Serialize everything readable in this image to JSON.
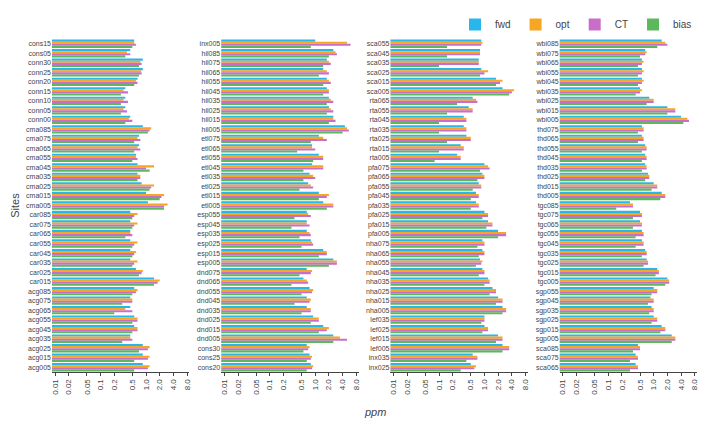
{
  "chart_data": [
    {
      "type": "bar",
      "orientation": "horizontal",
      "log": "x",
      "grid": false,
      "legend": "upper right",
      "ylabel": "Sites",
      "xlabel": "ppm",
      "xlim": [
        0.0085,
        9
      ],
      "xticks": [
        0.01,
        0.02,
        0.05,
        0.1,
        0.2,
        0.5,
        {
          "value": 1,
          "label": "1.0"
        },
        {
          "value": 2,
          "label": "2.0"
        },
        {
          "value": 4,
          "label": "4.0"
        },
        {
          "value": 8,
          "label": "8.0"
        }
      ],
      "categories": [
        "cons15",
        "cons05",
        "conn30",
        "conn25",
        "conn20",
        "conn15",
        "conn10",
        "conn05",
        "conn00",
        "cma085",
        "cma075",
        "cma065",
        "cma055",
        "cma045",
        "cma035",
        "cma025",
        "cma015",
        "cma005",
        "car085",
        "car075",
        "car065",
        "car055",
        "car045",
        "car035",
        "car025",
        "car015",
        "acg085",
        "acg075",
        "acg065",
        "acg055",
        "acg045",
        "acg035",
        "acg025",
        "acg015",
        "acg005"
      ],
      "series": [
        {
          "name": "fwd",
          "color": "#29b6e8",
          "values": [
            0.55,
            0.45,
            0.85,
            0.85,
            0.65,
            0.35,
            0.35,
            0.35,
            0.45,
            0.85,
            0.7,
            0.7,
            0.6,
            0.65,
            0.65,
            0.8,
            1.0,
            1.1,
            0.45,
            0.45,
            0.45,
            0.45,
            0.45,
            0.45,
            0.6,
            1.5,
            0.55,
            0.45,
            0.45,
            0.55,
            0.55,
            0.45,
            0.85,
            0.85,
            0.85
          ]
        },
        {
          "name": "opt",
          "color": "#f5a623",
          "values": [
            0.55,
            0.38,
            0.75,
            0.78,
            0.6,
            0.32,
            0.32,
            0.32,
            0.42,
            1.3,
            0.65,
            0.65,
            0.6,
            1.5,
            0.75,
            1.5,
            2.5,
            3.0,
            0.65,
            0.65,
            0.45,
            0.65,
            0.6,
            0.65,
            0.85,
            2.0,
            0.65,
            0.5,
            0.35,
            0.65,
            0.65,
            0.45,
            1.2,
            1.2,
            1.2
          ]
        },
        {
          "name": "CT",
          "color": "#c86ec8",
          "values": [
            0.6,
            0.45,
            0.8,
            0.8,
            0.65,
            0.4,
            0.4,
            0.38,
            0.5,
            1.2,
            0.75,
            0.75,
            0.65,
            1.0,
            0.75,
            1.3,
            2.2,
            2.5,
            0.55,
            0.55,
            0.5,
            0.55,
            0.55,
            0.55,
            0.8,
            1.8,
            0.6,
            0.5,
            0.5,
            0.65,
            0.65,
            0.5,
            1.1,
            1.1,
            1.1
          ]
        },
        {
          "name": "bias",
          "color": "#5cb85c",
          "values": [
            0.5,
            0.35,
            0.7,
            0.7,
            0.55,
            0.28,
            0.28,
            0.28,
            0.35,
            1.1,
            0.55,
            0.55,
            0.5,
            1.2,
            0.65,
            1.2,
            2.0,
            2.5,
            0.5,
            0.5,
            0.35,
            0.5,
            0.5,
            0.5,
            0.7,
            1.5,
            0.5,
            0.3,
            0.2,
            0.5,
            0.5,
            0.3,
            0.7,
            0.55,
            0.55
          ]
        }
      ]
    },
    {
      "type": "bar",
      "orientation": "horizontal",
      "log": "x",
      "grid": false,
      "xlim": [
        0.0085,
        9
      ],
      "xticks": [
        0.01,
        0.02,
        0.05,
        0.1,
        0.2,
        0.5,
        {
          "value": 1,
          "label": "1.0"
        },
        {
          "value": 2,
          "label": "2.0"
        },
        {
          "value": 4,
          "label": "4.0"
        },
        {
          "value": 8,
          "label": "8.0"
        }
      ],
      "categories": [
        "inx005",
        "hil085",
        "hil075",
        "hil065",
        "hil055",
        "hil045",
        "hil035",
        "hil025",
        "hil015",
        "hil005",
        "etl075",
        "etl065",
        "etl055",
        "etl045",
        "etl035",
        "etl025",
        "etl015",
        "etl005",
        "esp055",
        "esp045",
        "esp035",
        "esp025",
        "esp015",
        "esp005",
        "dnd075",
        "dnd065",
        "dnd055",
        "dnd045",
        "dnd035",
        "dnd025",
        "dnd015",
        "dnd005",
        "cons30",
        "cons25",
        "cons20"
      ],
      "series": [
        {
          "name": "fwd",
          "color": "#29b6e8",
          "values": [
            1.0,
            2.5,
            1.8,
            1.5,
            1.8,
            1.8,
            2.0,
            2.0,
            2.5,
            4.5,
            1.2,
            0.85,
            1.2,
            0.85,
            0.75,
            0.7,
            1.2,
            1.5,
            0.65,
            0.65,
            0.65,
            0.8,
            1.5,
            2.5,
            0.65,
            0.55,
            0.75,
            0.65,
            0.65,
            0.9,
            1.5,
            2.5,
            0.65,
            0.75,
            0.8
          ]
        },
        {
          "name": "opt",
          "color": "#f5a623",
          "values": [
            5.0,
            2.8,
            2.0,
            1.8,
            2.0,
            2.0,
            2.2,
            2.2,
            2.5,
            5.0,
            1.5,
            0.85,
            1.5,
            1.5,
            0.9,
            0.8,
            2.0,
            2.5,
            0.7,
            0.65,
            0.75,
            0.85,
            1.8,
            3.0,
            0.85,
            0.65,
            0.9,
            0.8,
            0.8,
            1.2,
            2.0,
            3.5,
            0.75,
            0.85,
            0.9
          ]
        },
        {
          "name": "CT",
          "color": "#c86ec8",
          "values": [
            6.0,
            3.0,
            2.2,
            2.0,
            2.2,
            2.0,
            2.5,
            2.5,
            2.8,
            5.5,
            1.8,
            1.0,
            1.5,
            1.5,
            1.0,
            0.9,
            1.8,
            2.5,
            0.8,
            0.75,
            0.8,
            0.9,
            1.8,
            3.0,
            0.8,
            0.7,
            0.85,
            0.75,
            0.8,
            1.2,
            1.8,
            5.0,
            0.7,
            0.8,
            0.85
          ]
        },
        {
          "name": "bias",
          "color": "#5cb85c",
          "values": [
            0.8,
            2.0,
            1.5,
            1.2,
            1.5,
            1.5,
            1.8,
            1.8,
            2.0,
            4.0,
            0.8,
            0.4,
            0.9,
            0.55,
            0.55,
            0.45,
            1.2,
            1.8,
            0.35,
            0.3,
            0.45,
            0.5,
            1.2,
            2.0,
            0.45,
            0.3,
            0.5,
            0.35,
            0.5,
            0.8,
            1.2,
            2.5,
            0.55,
            0.65,
            0.65
          ]
        }
      ]
    },
    {
      "type": "bar",
      "orientation": "horizontal",
      "log": "x",
      "grid": false,
      "xlim": [
        0.0085,
        9
      ],
      "xticks": [
        0.01,
        0.02,
        0.05,
        0.1,
        0.2,
        0.5,
        {
          "value": 1,
          "label": "1.0"
        },
        {
          "value": 2,
          "label": "2.0"
        },
        {
          "value": 4,
          "label": "4.0"
        },
        {
          "value": 8,
          "label": "8.0"
        }
      ],
      "categories": [
        "sca055",
        "sca045",
        "sca035",
        "sca025",
        "sca015",
        "sca005",
        "rta065",
        "rta055",
        "rta045",
        "rta035",
        "rta025",
        "rta015",
        "rta005",
        "pfa075",
        "pfa065",
        "pfa055",
        "pfa045",
        "pfa035",
        "pfa025",
        "pfa015",
        "pfa005",
        "nha075",
        "nha065",
        "nha055",
        "nha045",
        "nha035",
        "nha025",
        "nha015",
        "nha005",
        "lef035",
        "lef025",
        "lef015",
        "lef005",
        "inx035",
        "inx025"
      ],
      "series": [
        {
          "name": "fwd",
          "color": "#29b6e8",
          "values": [
            0.85,
            0.8,
            0.75,
            0.85,
            1.8,
            2.5,
            0.55,
            0.45,
            0.35,
            0.35,
            0.4,
            0.3,
            0.25,
            1.0,
            0.9,
            0.75,
            0.65,
            0.65,
            1.0,
            1.2,
            2.0,
            0.9,
            0.9,
            0.8,
            0.9,
            1.2,
            1.5,
            2.0,
            2.5,
            1.0,
            1.0,
            2.0,
            2.5,
            0.55,
            0.5
          ]
        },
        {
          "name": "opt",
          "color": "#f5a623",
          "values": [
            0.9,
            0.8,
            0.75,
            1.2,
            2.5,
            4.5,
            0.65,
            0.55,
            0.4,
            0.4,
            0.5,
            0.35,
            0.3,
            1.2,
            1.0,
            0.85,
            0.75,
            0.75,
            1.2,
            1.5,
            3.0,
            1.0,
            1.0,
            0.9,
            1.0,
            1.3,
            1.8,
            2.5,
            3.0,
            1.0,
            1.2,
            2.5,
            3.5,
            0.7,
            0.65
          ]
        },
        {
          "name": "CT",
          "color": "#c86ec8",
          "values": [
            0.85,
            0.8,
            0.75,
            1.0,
            2.2,
            4.0,
            0.7,
            0.55,
            0.4,
            0.4,
            0.5,
            0.35,
            0.3,
            1.3,
            1.0,
            0.85,
            0.75,
            0.75,
            1.2,
            1.5,
            3.0,
            1.0,
            1.0,
            0.85,
            1.0,
            1.3,
            1.8,
            2.5,
            3.0,
            1.0,
            1.2,
            2.5,
            3.5,
            0.7,
            0.6
          ]
        },
        {
          "name": "bias",
          "color": "#5cb85c",
          "values": [
            0.15,
            0.15,
            0.1,
            0.8,
            1.8,
            3.5,
            0.25,
            0.15,
            0.1,
            0.1,
            0.15,
            0.1,
            0.08,
            0.8,
            0.7,
            0.55,
            0.5,
            0.5,
            0.9,
            1.1,
            2.0,
            0.7,
            0.75,
            0.65,
            0.75,
            1.0,
            1.3,
            1.8,
            2.5,
            0.85,
            0.9,
            1.8,
            2.5,
            0.4,
            0.3
          ]
        }
      ]
    },
    {
      "type": "bar",
      "orientation": "horizontal",
      "log": "x",
      "grid": false,
      "xlim": [
        0.0085,
        9
      ],
      "xticks": [
        0.01,
        0.02,
        0.05,
        0.1,
        0.2,
        0.5,
        {
          "value": 1,
          "label": "1.0"
        },
        {
          "value": 2,
          "label": "2.0"
        },
        {
          "value": 4,
          "label": "4.0"
        },
        {
          "value": 8,
          "label": "8.0"
        }
      ],
      "categories": [
        "wbi085",
        "wbi075",
        "wbi065",
        "wbi055",
        "wbi045",
        "wbi035",
        "wbi025",
        "wbi015",
        "wbi005",
        "thd075",
        "thd065",
        "thd055",
        "thd045",
        "thd035",
        "thd025",
        "thd015",
        "thd005",
        "tgc085",
        "tgc075",
        "tgc065",
        "tgc055",
        "tgc045",
        "tgc035",
        "tgc025",
        "tgc015",
        "tgc005",
        "sgp055",
        "sgp045",
        "sgp035",
        "sgp025",
        "sgp015",
        "sgp005",
        "sca085",
        "sca075",
        "sca065"
      ],
      "series": [
        {
          "name": "fwd",
          "color": "#29b6e8",
          "values": [
            1.5,
            0.65,
            0.55,
            0.55,
            0.55,
            0.5,
            0.8,
            2.0,
            4.0,
            0.55,
            0.55,
            0.65,
            0.65,
            0.65,
            0.75,
            1.0,
            1.5,
            0.3,
            0.5,
            0.5,
            0.55,
            0.55,
            0.65,
            0.7,
            1.2,
            2.0,
            1.0,
            0.85,
            0.9,
            1.0,
            1.5,
            2.5,
            0.45,
            0.4,
            0.4
          ]
        },
        {
          "name": "opt",
          "color": "#f5a623",
          "values": [
            1.8,
            0.7,
            0.6,
            0.6,
            0.6,
            0.55,
            1.0,
            3.0,
            5.5,
            0.6,
            0.6,
            0.7,
            0.7,
            0.7,
            0.8,
            1.2,
            1.8,
            0.35,
            0.55,
            0.55,
            0.6,
            0.6,
            0.7,
            0.75,
            1.3,
            2.2,
            1.2,
            1.0,
            1.0,
            1.2,
            1.8,
            3.0,
            0.5,
            0.45,
            0.45
          ]
        },
        {
          "name": "CT",
          "color": "#c86ec8",
          "values": [
            2.0,
            0.65,
            0.55,
            0.55,
            0.55,
            0.5,
            1.0,
            3.0,
            6.0,
            0.6,
            0.6,
            0.7,
            0.7,
            0.7,
            0.8,
            1.2,
            1.8,
            0.35,
            0.55,
            0.55,
            0.6,
            0.6,
            0.7,
            0.75,
            1.3,
            2.2,
            1.2,
            1.0,
            1.0,
            1.2,
            1.8,
            3.0,
            0.5,
            0.45,
            0.45
          ]
        },
        {
          "name": "bias",
          "color": "#5cb85c",
          "values": [
            1.2,
            0.5,
            0.45,
            0.45,
            0.45,
            0.4,
            0.7,
            2.0,
            4.5,
            0.45,
            0.45,
            0.55,
            0.55,
            0.55,
            0.65,
            0.9,
            1.4,
            0.15,
            0.35,
            0.35,
            0.4,
            0.4,
            0.55,
            0.6,
            1.1,
            1.8,
            0.9,
            0.75,
            0.8,
            0.9,
            1.4,
            2.5,
            0.35,
            0.3,
            0.3
          ]
        }
      ]
    }
  ]
}
